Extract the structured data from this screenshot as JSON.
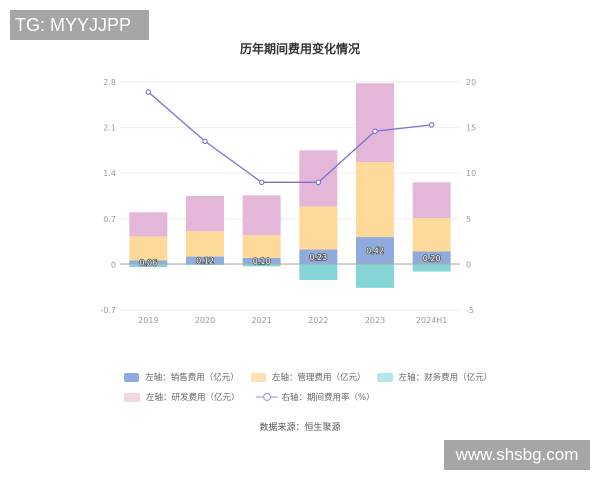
{
  "watermarks": {
    "top_left": "TG: MYYJJPP",
    "bottom_right": "www.shsbg.com"
  },
  "colors": {
    "sales": "#8faadc",
    "management": "#ffd99a",
    "finance": "#84d6d6",
    "rnd": "#e4b7d9",
    "rate_line": "#7b6fd1",
    "grid": "#eeeeee",
    "axis": "#999999"
  },
  "legend": [
    {
      "key": "sales",
      "label": "左轴：销售费用（亿元）"
    },
    {
      "key": "management",
      "label": "左轴：管理费用（亿元）"
    },
    {
      "key": "finance",
      "label": "左轴：财务费用（亿元）"
    },
    {
      "key": "rnd",
      "label": "左轴：研发费用（亿元）"
    },
    {
      "key": "rate",
      "label": "右轴：期间费用率（%）"
    }
  ],
  "source": "数据来源：恒生聚源",
  "chart_data": {
    "type": "bar",
    "title": "历年期间费用变化情况",
    "categories": [
      "2019",
      "2020",
      "2021",
      "2022",
      "2023",
      "2024H1"
    ],
    "series": [
      {
        "name": "左轴：销售费用（亿元）",
        "axis": "left",
        "stack": "total",
        "values": [
          0.06,
          0.12,
          0.1,
          0.23,
          0.42,
          0.2
        ],
        "labels": [
          "0.06",
          "0.12",
          "0.10",
          "0.23",
          "0.42",
          "0.20"
        ]
      },
      {
        "name": "左轴：管理费用（亿元）",
        "axis": "left",
        "stack": "total",
        "values": [
          0.37,
          0.39,
          0.35,
          0.66,
          1.15,
          0.51
        ]
      },
      {
        "name": "左轴：财务费用（亿元）",
        "axis": "left",
        "stack": "total",
        "values": [
          -0.04,
          -0.01,
          -0.03,
          -0.24,
          -0.36,
          -0.11
        ]
      },
      {
        "name": "左轴：研发费用（亿元）",
        "axis": "left",
        "stack": "total",
        "values": [
          0.37,
          0.54,
          0.61,
          0.86,
          1.21,
          0.55
        ]
      },
      {
        "name": "右轴：期间费用率（%）",
        "axis": "right",
        "type": "line",
        "values": [
          18.9,
          13.5,
          9.0,
          9.0,
          14.6,
          15.3
        ]
      }
    ],
    "left_axis": {
      "ticks": [
        "2.8",
        "2.1",
        "1.4",
        "0.7",
        "0",
        "-0.7"
      ],
      "ylim": [
        -0.7,
        2.8
      ]
    },
    "right_axis": {
      "ticks": [
        "20",
        "15",
        "10",
        "5",
        "0",
        "-5"
      ],
      "ylim": [
        -5,
        20
      ]
    },
    "xlabel": "",
    "ylabel": "",
    "grid": true,
    "legend_position": "bottom"
  }
}
